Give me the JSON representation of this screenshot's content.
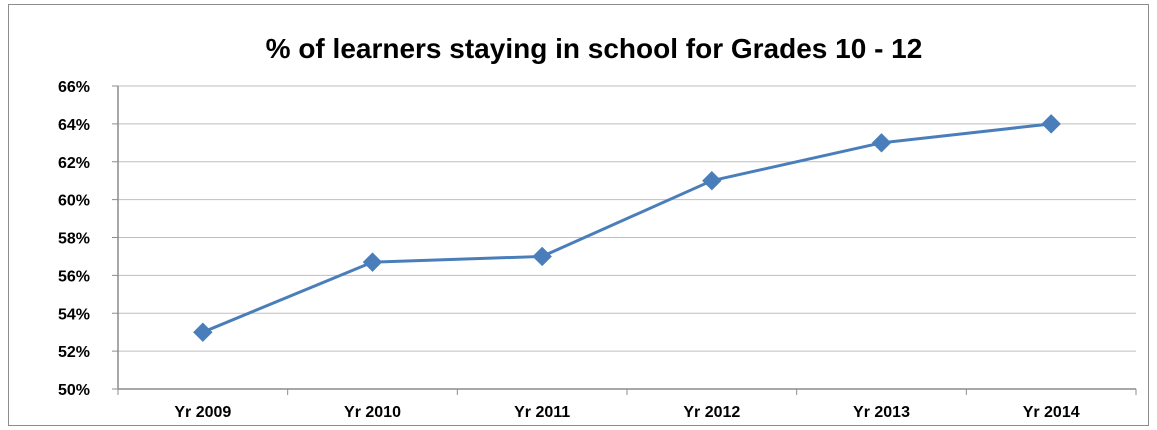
{
  "chart_data": {
    "type": "line",
    "title": "% of learners staying in school for Grades 10 - 12",
    "xlabel": "",
    "ylabel": "",
    "categories": [
      "Yr 2009",
      "Yr 2010",
      "Yr 2011",
      "Yr 2012",
      "Yr 2013",
      "Yr 2014"
    ],
    "series": [
      {
        "values": [
          53,
          56.7,
          57,
          61,
          63,
          64
        ]
      }
    ],
    "ylim": [
      50,
      66
    ],
    "ytick_step": 2,
    "ytick_suffix": "%",
    "grid": true,
    "legend": "none",
    "colors": {
      "line": "#4a7ebb",
      "grid": "#bfbfbf",
      "axis": "#8c8c8c"
    }
  }
}
